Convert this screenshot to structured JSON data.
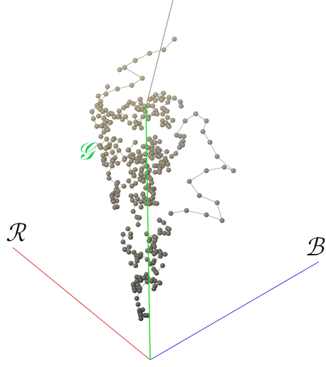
{
  "axes": {
    "r_label": "ℛ",
    "g_label": "𝒢",
    "b_label": "ℬ"
  }
}
